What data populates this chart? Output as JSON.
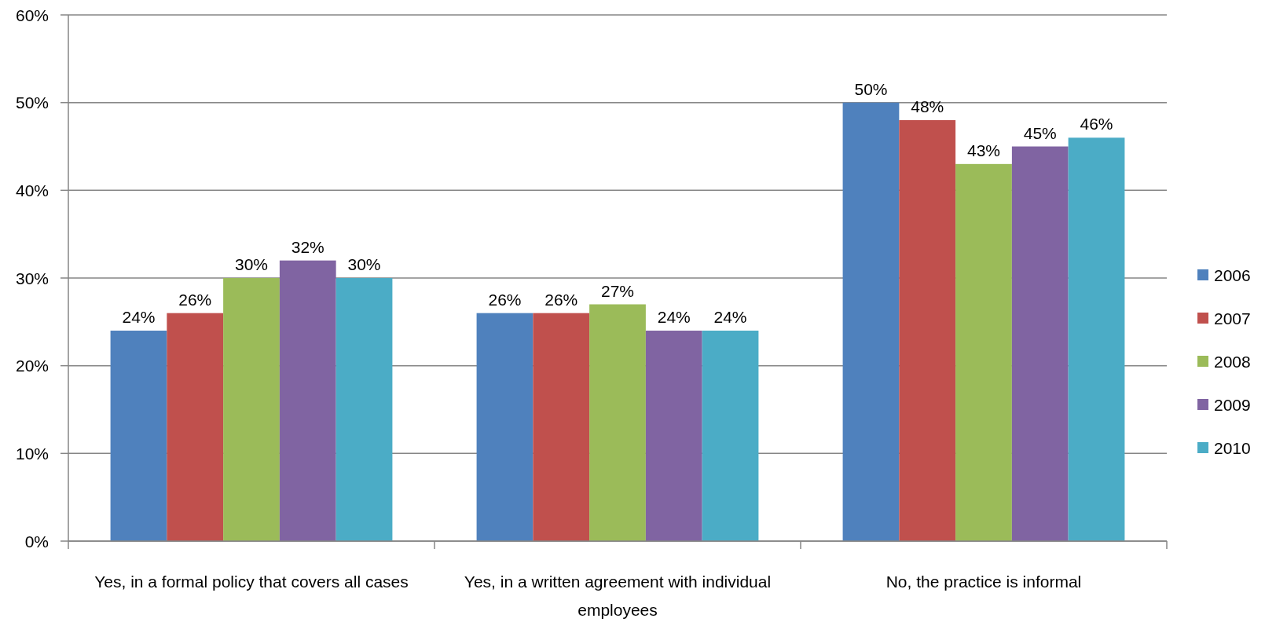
{
  "chart_data": {
    "type": "bar",
    "categories": [
      "Yes, in a formal policy that covers all cases",
      "Yes, in a written agreement with individual employees",
      "No, the practice is informal"
    ],
    "series": [
      {
        "name": "2006",
        "color": "#4f81bd",
        "values": [
          24,
          26,
          50
        ],
        "value_labels": [
          "24%",
          "26%",
          "50%"
        ]
      },
      {
        "name": "2007",
        "color": "#c0504d",
        "values": [
          26,
          26,
          48
        ],
        "value_labels": [
          "26%",
          "26%",
          "48%"
        ]
      },
      {
        "name": "2008",
        "color": "#9bbb59",
        "values": [
          30,
          27,
          43
        ],
        "value_labels": [
          "30%",
          "27%",
          "43%"
        ]
      },
      {
        "name": "2009",
        "color": "#8064a2",
        "values": [
          32,
          24,
          45
        ],
        "value_labels": [
          "32%",
          "24%",
          "45%"
        ]
      },
      {
        "name": "2010",
        "color": "#4bacc6",
        "values": [
          30,
          24,
          46
        ],
        "value_labels": [
          "30%",
          "24%",
          "46%"
        ]
      }
    ],
    "ylim": [
      0,
      60
    ],
    "yticks": [
      {
        "value": 0,
        "label": "0%"
      },
      {
        "value": 10,
        "label": "10%"
      },
      {
        "value": 20,
        "label": "20%"
      },
      {
        "value": 30,
        "label": "30%"
      },
      {
        "value": 40,
        "label": "40%"
      },
      {
        "value": 50,
        "label": "50%"
      },
      {
        "value": 60,
        "label": "60%"
      }
    ],
    "grid": "y",
    "legend": "right"
  }
}
